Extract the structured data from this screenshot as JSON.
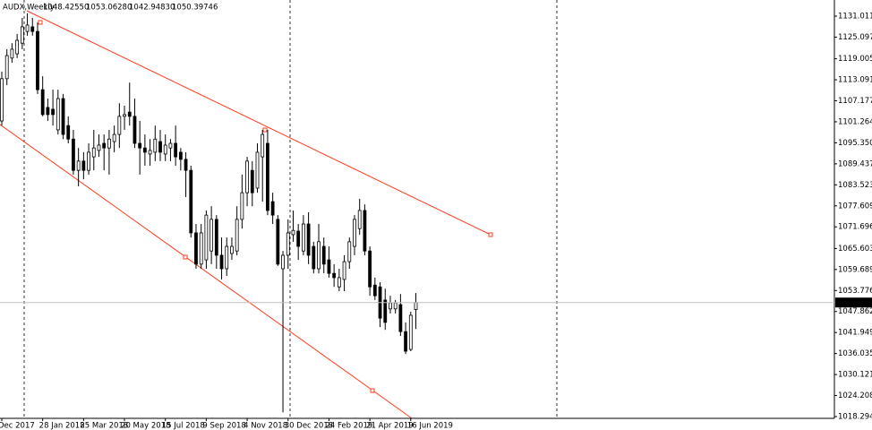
{
  "header": {
    "symbol": "AUDX,Weekly",
    "ohlc_text": [
      "1048.42550",
      "1053.06280",
      "1042.94830",
      "1050.39746"
    ]
  },
  "chart_data": {
    "type": "candlestick",
    "categories": [
      "Dec 2017",
      null,
      null,
      null,
      null,
      null,
      null,
      null,
      "28 Jan 2018",
      null,
      null,
      null,
      null,
      null,
      null,
      null,
      "25 Mar 2018",
      null,
      null,
      null,
      null,
      null,
      null,
      null,
      "20 May 2018",
      null,
      null,
      null,
      null,
      null,
      null,
      null,
      "15 Jul 2018",
      null,
      null,
      null,
      null,
      null,
      null,
      null,
      "9 Sep 2018",
      null,
      null,
      null,
      null,
      null,
      null,
      null,
      "4 Nov 2018",
      null,
      null,
      null,
      null,
      null,
      null,
      null,
      "30 Dec 2018",
      null,
      null,
      null,
      null,
      null,
      null,
      null,
      "24 Feb 2019",
      null,
      null,
      null,
      null,
      null,
      null,
      null,
      "21 Apr 2019",
      null,
      null,
      null,
      null,
      null,
      null,
      null,
      "16 Jun 2019",
      null
    ],
    "open": [
      1101.5,
      1113.4,
      1119.2,
      1120.4,
      1123.4,
      1126.7,
      1128.0,
      1126.7,
      1110.3,
      1105.3,
      1104.8,
      1099.0,
      1107.8,
      1100.2,
      1096.4,
      1087.6,
      1090.2,
      1087.6,
      1091.4,
      1093.2,
      1095.2,
      1093.9,
      1095.7,
      1097.7,
      1102.8,
      1104.0,
      1102.8,
      1095.2,
      1093.9,
      1092.2,
      1092.7,
      1095.7,
      1092.2,
      1093.9,
      1095.2,
      1092.7,
      1090.7,
      1087.6,
      1070.0,
      1061.2,
      1062.4,
      1064.9,
      1073.8,
      1063.7,
      1059.9,
      1064.2,
      1064.9,
      1073.8,
      1081.3,
      1087.6,
      1082.6,
      1091.4,
      1095.2,
      1078.8,
      1073.8,
      1059.9,
      1063.7,
      1069.5,
      1070.5,
      1064.9,
      1072.5,
      1066.2,
      1059.9,
      1066.2,
      1062.4,
      1058.6,
      1054.8,
      1056.9,
      1061.9,
      1066.2,
      1071.2,
      1076.3,
      1064.9,
      1055.3,
      1054.8,
      1051.1,
      1048.6,
      1048.6,
      1049.8,
      1042.2,
      1037.2,
      1048.4255
    ],
    "high": [
      1115.4,
      1121.7,
      1123.4,
      1126.0,
      1130.5,
      1131.8,
      1130.5,
      1129.2,
      1114.1,
      1107.8,
      1110.3,
      1110.3,
      1109.1,
      1102.8,
      1099.0,
      1093.9,
      1092.7,
      1095.2,
      1099.0,
      1097.7,
      1097.7,
      1099.0,
      1100.2,
      1106.5,
      1105.8,
      1112.3,
      1107.8,
      1101.5,
      1097.7,
      1096.4,
      1100.2,
      1099.0,
      1097.7,
      1096.4,
      1100.2,
      1093.9,
      1092.7,
      1088.9,
      1072.5,
      1072.5,
      1076.3,
      1077.5,
      1075.0,
      1068.7,
      1068.7,
      1068.7,
      1077.5,
      1086.4,
      1091.4,
      1090.2,
      1095.2,
      1099.0,
      1099.0,
      1081.3,
      1075.0,
      1064.9,
      1073.8,
      1076.3,
      1072.5,
      1075.0,
      1075.8,
      1067.5,
      1072.5,
      1068.7,
      1066.2,
      1061.2,
      1059.9,
      1063.7,
      1068.7,
      1075.0,
      1079.6,
      1078.0,
      1066.2,
      1057.4,
      1056.1,
      1054.3,
      1052.3,
      1051.1,
      1052.8,
      1044.8,
      1047.8,
      1053.0628
    ],
    "low": [
      1100.2,
      1111.6,
      1117.9,
      1119.2,
      1121.7,
      1125.5,
      1125.5,
      1109.1,
      1102.8,
      1101.5,
      1100.2,
      1097.7,
      1096.4,
      1095.2,
      1086.4,
      1083.1,
      1085.1,
      1086.4,
      1087.6,
      1091.4,
      1087.6,
      1086.4,
      1092.7,
      1093.9,
      1099.0,
      1100.2,
      1093.9,
      1086.4,
      1088.9,
      1088.9,
      1090.2,
      1090.2,
      1090.2,
      1090.2,
      1088.9,
      1087.6,
      1080.1,
      1068.7,
      1059.9,
      1059.9,
      1059.9,
      1061.2,
      1059.9,
      1056.9,
      1057.9,
      1062.4,
      1063.7,
      1071.2,
      1077.5,
      1077.5,
      1081.3,
      1078.8,
      1075.0,
      1072.5,
      1060.7,
      1019.5,
      1059.9,
      1067.5,
      1062.4,
      1063.7,
      1061.2,
      1058.6,
      1058.6,
      1058.6,
      1057.4,
      1054.8,
      1053.6,
      1053.6,
      1059.9,
      1063.7,
      1069.5,
      1063.7,
      1052.3,
      1051.1,
      1043.5,
      1042.7,
      1047.3,
      1047.3,
      1041.0,
      1035.9,
      1036.7,
      1042.9483
    ],
    "close": [
      1113.4,
      1119.9,
      1121.7,
      1124.2,
      1128.0,
      1128.5,
      1126.7,
      1110.3,
      1103.3,
      1103.3,
      1103.3,
      1107.8,
      1097.7,
      1096.4,
      1087.6,
      1090.2,
      1087.6,
      1092.7,
      1093.9,
      1094.7,
      1093.9,
      1096.4,
      1097.7,
      1102.8,
      1103.3,
      1102.8,
      1095.2,
      1093.9,
      1092.7,
      1093.2,
      1096.4,
      1092.7,
      1094.7,
      1095.2,
      1091.4,
      1090.7,
      1087.6,
      1070.0,
      1061.2,
      1070.0,
      1075.0,
      1073.8,
      1063.7,
      1059.9,
      1066.2,
      1066.2,
      1073.8,
      1081.3,
      1090.2,
      1081.3,
      1092.7,
      1097.7,
      1076.3,
      1075.0,
      1061.2,
      1063.7,
      1070.0,
      1070.7,
      1066.2,
      1072.5,
      1063.7,
      1059.9,
      1067.5,
      1061.2,
      1058.6,
      1057.4,
      1057.4,
      1061.9,
      1067.5,
      1073.8,
      1076.3,
      1064.9,
      1054.8,
      1052.3,
      1046.0,
      1044.8,
      1050.3,
      1050.3,
      1042.2,
      1036.7,
      1046.8,
      1050.39746
    ],
    "up_color": "#ffffff",
    "down_color": "#000000",
    "price_line": 1050.39746,
    "ylim": [
      1017.79,
      1135.55
    ],
    "yticks": [
      {
        "value": 1018.2946,
        "label": "1018.29460"
      },
      {
        "value": 1024.2082,
        "label": "1024.20820"
      },
      {
        "value": 1030.1218,
        "label": "1030.12180"
      },
      {
        "value": 1036.0354,
        "label": "1036.03540"
      },
      {
        "value": 1041.949,
        "label": "1041.94900"
      },
      {
        "value": 1047.8626,
        "label": "1047.86260"
      },
      {
        "value": 1053.7762,
        "label": "1053.77620"
      },
      {
        "value": 1059.6898,
        "label": "1059.68980"
      },
      {
        "value": 1065.6034,
        "label": "1065.60340"
      },
      {
        "value": 1071.6962,
        "label": "1071.69620"
      },
      {
        "value": 1077.6098,
        "label": "1077.60980"
      },
      {
        "value": 1083.5234,
        "label": "1083.52340"
      },
      {
        "value": 1089.437,
        "label": "1089.43700"
      },
      {
        "value": 1095.3506,
        "label": "1095.35060"
      },
      {
        "value": 1101.2642,
        "label": "1101.26420"
      },
      {
        "value": 1107.1778,
        "label": "1107.17780"
      },
      {
        "value": 1113.0914,
        "label": "1113.09140"
      },
      {
        "value": 1119.005,
        "label": "1119.00500"
      },
      {
        "value": 1125.0978,
        "label": "1125.09780"
      },
      {
        "value": 1131.0114,
        "label": "1131.01140"
      }
    ]
  }
}
